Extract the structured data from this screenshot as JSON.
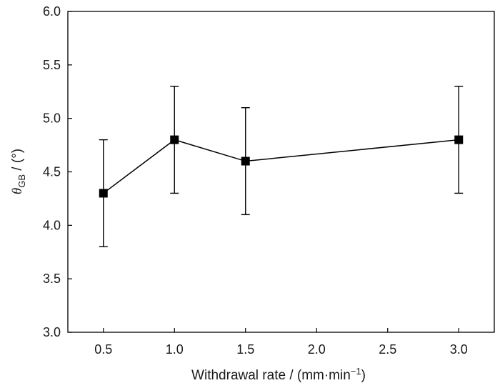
{
  "chart_data": {
    "type": "line",
    "title": "",
    "xlabel": {
      "prefix": "Withdrawal rate / (mm·min",
      "superscript": "−1",
      "suffix": ")"
    },
    "ylabel": {
      "symbol": "θ",
      "subscript": "GB",
      "suffix": " / (°)"
    },
    "xlim": [
      0.25,
      3.25
    ],
    "ylim": [
      3.0,
      6.0
    ],
    "xticks": [
      0.5,
      1.0,
      1.5,
      2.0,
      2.5,
      3.0
    ],
    "xtick_labels": [
      "0.5",
      "1.0",
      "1.5",
      "2.0",
      "2.5",
      "3.0"
    ],
    "yticks": [
      3.0,
      3.5,
      4.0,
      4.5,
      5.0,
      5.5,
      6.0
    ],
    "ytick_labels": [
      "3.0",
      "3.5",
      "4.0",
      "4.5",
      "5.0",
      "5.5",
      "6.0"
    ],
    "grid": false,
    "marker": "square",
    "color": "#000000",
    "series": [
      {
        "x": [
          0.5,
          1.0,
          1.5,
          3.0
        ],
        "y": [
          4.3,
          4.8,
          4.6,
          4.8
        ],
        "error": [
          0.5,
          0.5,
          0.5,
          0.5
        ]
      }
    ]
  }
}
